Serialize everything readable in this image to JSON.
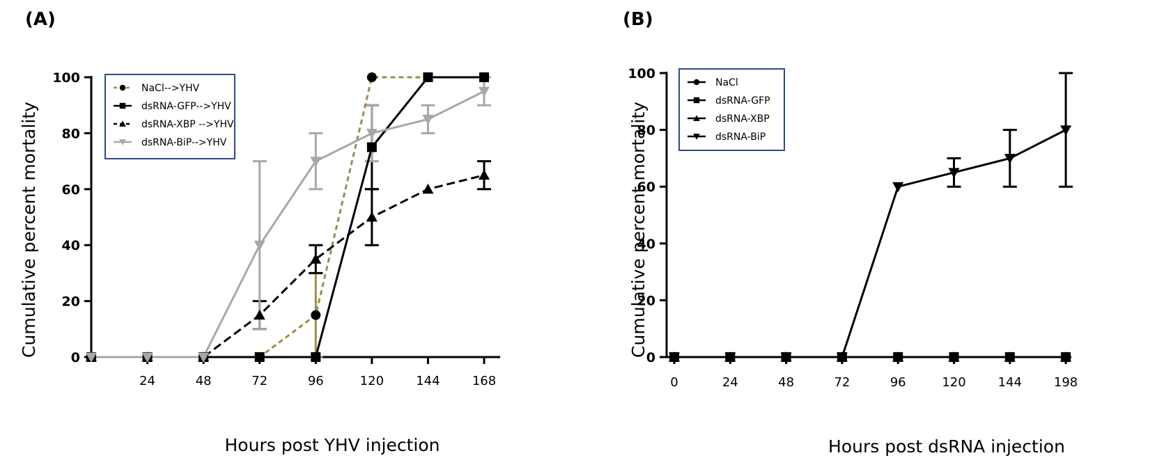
{
  "chart_data": [
    {
      "panel_label": "(A)",
      "type": "line",
      "xlabel": "Hours post YHV injection",
      "ylabel": "Cumulative percent mortality",
      "xticks": [
        24,
        48,
        72,
        96,
        120,
        144,
        168
      ],
      "xlim": [
        0,
        168
      ],
      "yticks": [
        "0",
        "20",
        "40",
        "60",
        "80",
        "100"
      ],
      "ylim": [
        0,
        100
      ],
      "grid": false,
      "legend_position": "top-left",
      "series": [
        {
          "name": "NaCl-->YHV",
          "color": "#9c8e4a",
          "dash": "dashed",
          "marker": "circle",
          "x": [
            0,
            24,
            48,
            72,
            96,
            120,
            144,
            168
          ],
          "y": [
            0,
            0,
            0,
            0,
            15,
            100,
            100,
            100
          ],
          "err": [
            0,
            0,
            0,
            0,
            15,
            0,
            0,
            0
          ]
        },
        {
          "name": "dsRNA-GFP-->YHV",
          "color": "#000000",
          "dash": "solid",
          "marker": "square",
          "x": [
            0,
            24,
            48,
            72,
            96,
            120,
            144,
            168
          ],
          "y": [
            0,
            0,
            0,
            0,
            0,
            75,
            100,
            100
          ],
          "err": [
            0,
            0,
            0,
            0,
            0,
            15,
            0,
            0
          ]
        },
        {
          "name": "dsRNA-XBP -->YHV",
          "color": "#000000",
          "dash": "dashed",
          "marker": "triangle-up",
          "x": [
            0,
            24,
            48,
            72,
            96,
            120,
            144,
            168
          ],
          "y": [
            0,
            0,
            0,
            15,
            35,
            50,
            60,
            65
          ],
          "err": [
            0,
            0,
            0,
            5,
            5,
            10,
            0,
            5
          ]
        },
        {
          "name": "dsRNA-BiP-->YHV",
          "color": "#a8a8a8",
          "dash": "solid",
          "marker": "triangle-down",
          "x": [
            0,
            24,
            48,
            72,
            96,
            120,
            144,
            168
          ],
          "y": [
            0,
            0,
            0,
            40,
            70,
            80,
            85,
            95
          ],
          "err": [
            0,
            0,
            0,
            30,
            10,
            10,
            5,
            5
          ]
        }
      ]
    },
    {
      "panel_label": "(B)",
      "type": "line",
      "xlabel": "Hours post dsRNA injection",
      "ylabel": "Cumulative percent mortality",
      "categories": [
        "0",
        "24",
        "48",
        "72",
        "96",
        "120",
        "144",
        "198"
      ],
      "yticks": [
        "0",
        "20",
        "40",
        "60",
        "80",
        "100"
      ],
      "ylim": [
        0,
        100
      ],
      "grid": false,
      "legend_position": "top-left",
      "series": [
        {
          "name": "NaCl",
          "color": "#000000",
          "dash": "solid",
          "marker": "circle",
          "y": [
            0,
            0,
            0,
            0,
            0,
            0,
            0,
            0
          ],
          "err": [
            0,
            0,
            0,
            0,
            0,
            0,
            0,
            0
          ]
        },
        {
          "name": "dsRNA-GFP",
          "color": "#000000",
          "dash": "solid",
          "marker": "square",
          "y": [
            0,
            0,
            0,
            0,
            0,
            0,
            0,
            0
          ],
          "err": [
            0,
            0,
            0,
            0,
            0,
            0,
            0,
            0
          ]
        },
        {
          "name": "dsRNA-XBP",
          "color": "#000000",
          "dash": "solid",
          "marker": "triangle-up",
          "y": [
            0,
            0,
            0,
            0,
            0,
            0,
            0,
            0
          ],
          "err": [
            0,
            0,
            0,
            0,
            0,
            0,
            0,
            0
          ]
        },
        {
          "name": "dsRNA-BiP",
          "color": "#000000",
          "dash": "solid",
          "marker": "triangle-down",
          "y": [
            0,
            0,
            0,
            0,
            60,
            65,
            70,
            80
          ],
          "err": [
            0,
            0,
            0,
            0,
            0,
            5,
            10,
            20
          ]
        }
      ]
    }
  ]
}
